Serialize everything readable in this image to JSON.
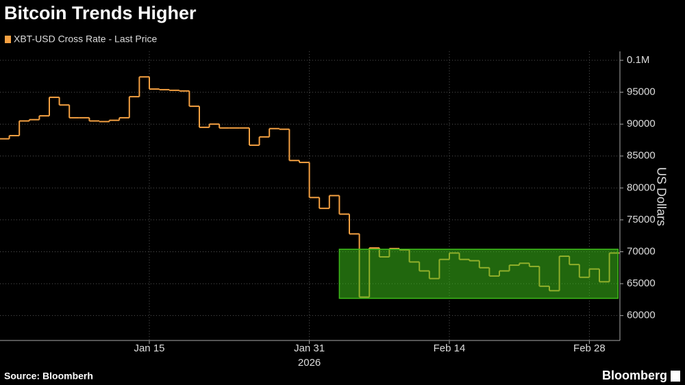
{
  "chart_data": {
    "type": "step",
    "title": "Bitcoin Trends Higher",
    "series": [
      {
        "name": "XBT-USD Cross Rate - Last Price",
        "color": "#f5a142",
        "values": [
          87700,
          88200,
          90500,
          90700,
          91300,
          94200,
          93000,
          91000,
          91000,
          90500,
          90400,
          90600,
          91000,
          94300,
          97400,
          95500,
          95400,
          95300,
          95200,
          92800,
          89500,
          90000,
          89400,
          89400,
          89400,
          86700,
          88000,
          89300,
          89200,
          84300,
          84000,
          78500,
          76800,
          78800,
          75900,
          72800,
          62900,
          70600,
          69200,
          70500,
          70300,
          68400,
          67000,
          65800,
          68800,
          69800,
          68800,
          68600,
          67500,
          66200,
          67000,
          67900,
          68200,
          67700,
          64600,
          63900,
          69300,
          68000,
          66000,
          67300,
          65300,
          69800
        ]
      }
    ],
    "categories": [
      null,
      null,
      null,
      null,
      null,
      null,
      null,
      null,
      null,
      null,
      null,
      null,
      null,
      null,
      null,
      "Jan 15",
      null,
      null,
      null,
      null,
      null,
      null,
      null,
      null,
      null,
      null,
      null,
      null,
      null,
      null,
      null,
      "Jan 31",
      null,
      null,
      null,
      null,
      null,
      null,
      null,
      null,
      null,
      null,
      null,
      null,
      null,
      "Feb 14",
      null,
      null,
      null,
      null,
      null,
      null,
      null,
      null,
      null,
      null,
      null,
      null,
      null,
      "Feb 28",
      null,
      null
    ],
    "x_sublabel": "2026",
    "ylabel": "US Dollars",
    "ylim": [
      56100,
      101400
    ],
    "yticks": [
      60000,
      65000,
      70000,
      75000,
      80000,
      85000,
      90000,
      95000,
      {
        "value": 100000,
        "label": "0.1M"
      }
    ],
    "grid": true,
    "highlight": {
      "start": 35,
      "end": 62,
      "ylim": [
        62700,
        70400
      ],
      "color": "#3dbb1a"
    },
    "source": "Source: Bloomberh",
    "brand": "Bloomberg"
  }
}
